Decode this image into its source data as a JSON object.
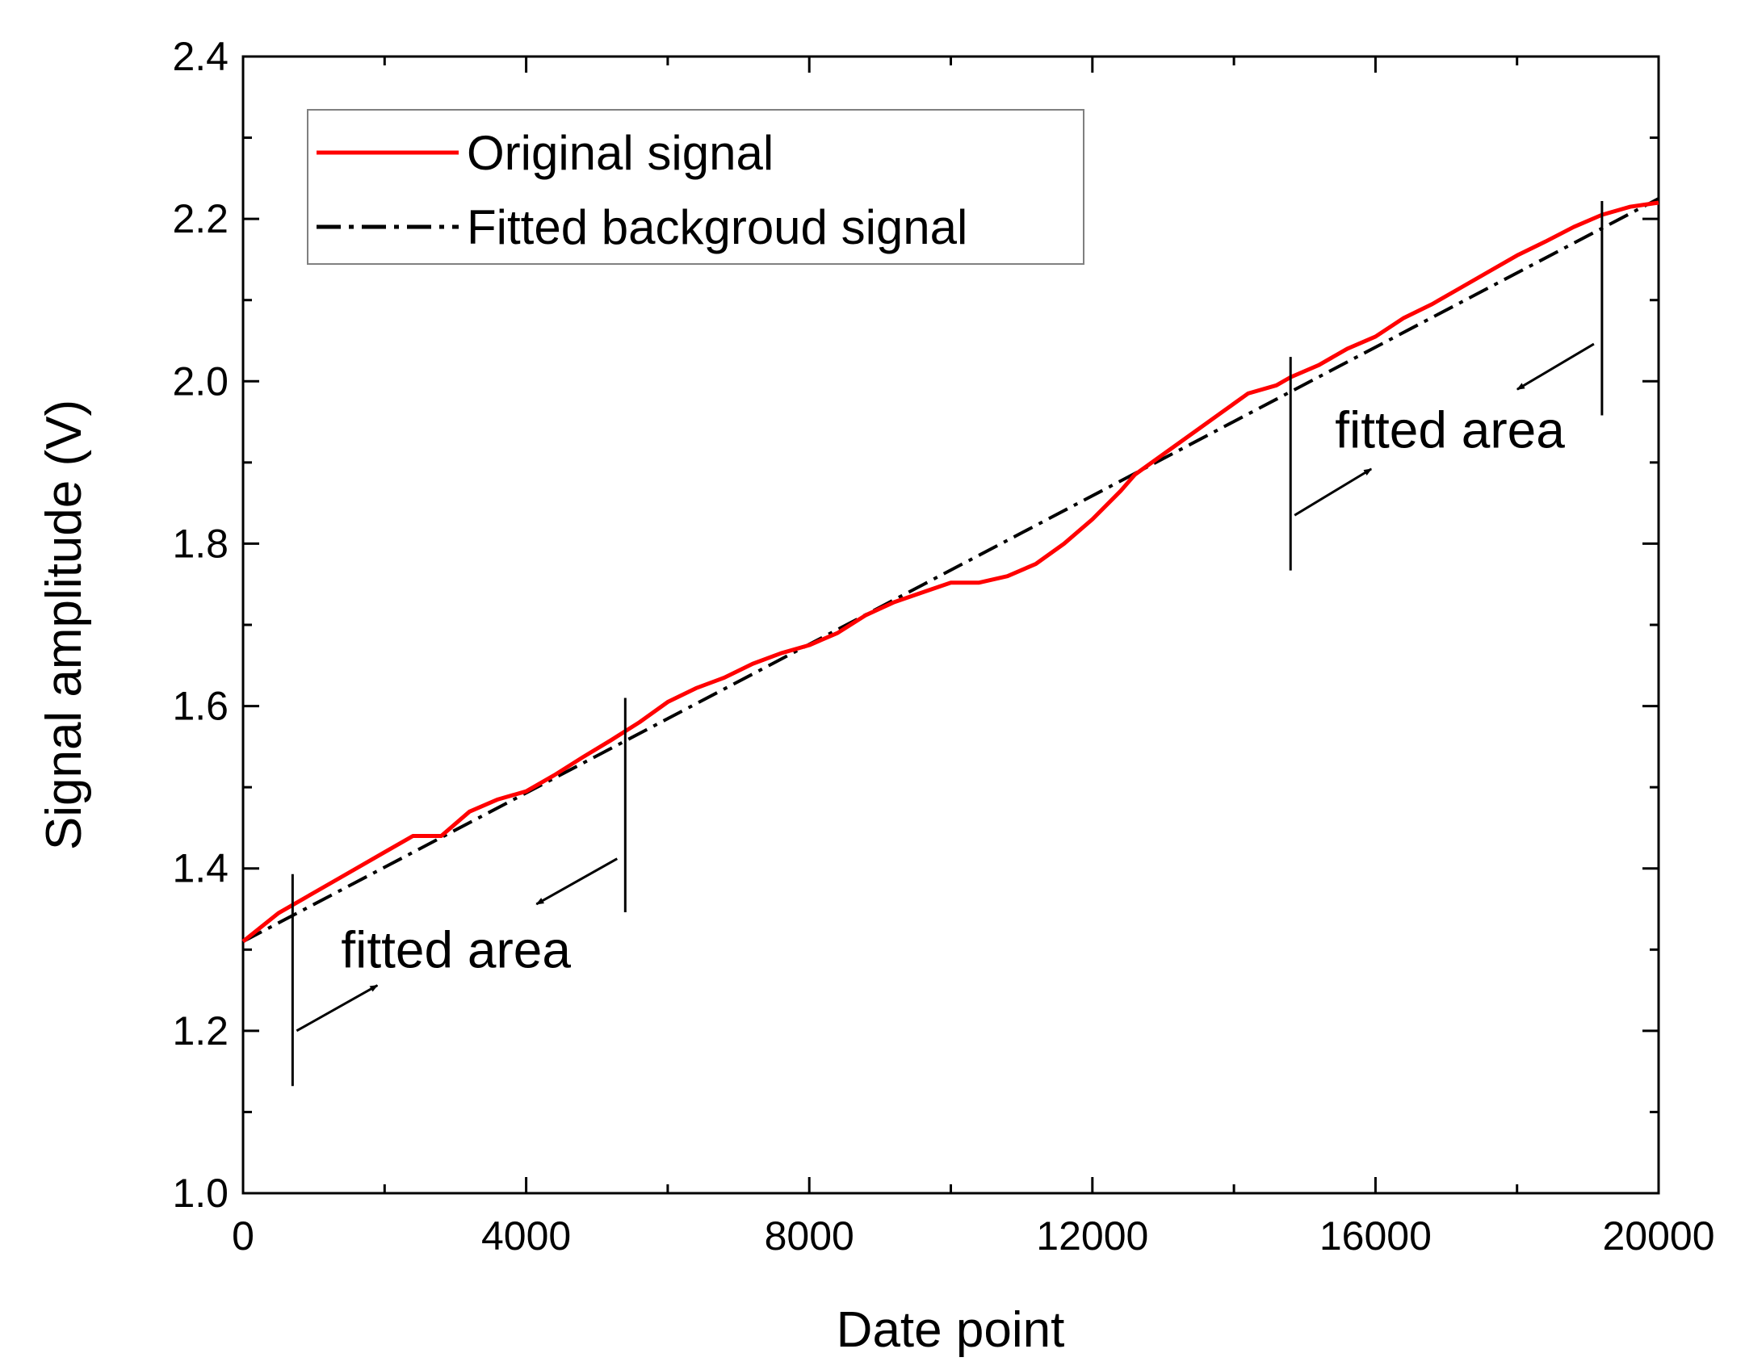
{
  "chart_data": {
    "type": "line",
    "title": "",
    "xlabel": "Date point",
    "ylabel": "Signal amplitude (V)",
    "xlim": [
      0,
      20000
    ],
    "ylim": [
      1.0,
      2.4
    ],
    "x_ticks": [
      0,
      4000,
      8000,
      12000,
      16000,
      20000
    ],
    "y_ticks": [
      1.0,
      1.2,
      1.4,
      1.6,
      1.8,
      2.0,
      2.2,
      2.4
    ],
    "x_tick_labels": [
      "0",
      "4000",
      "8000",
      "12000",
      "16000",
      "20000"
    ],
    "y_tick_labels": [
      "1.0",
      "1.2",
      "1.4",
      "1.6",
      "1.8",
      "2.0",
      "2.2",
      "2.4"
    ],
    "grid": false,
    "legend_position": "top-left",
    "series": [
      {
        "name": "Original signal",
        "color": "#ff0000",
        "style": "solid",
        "x": [
          0,
          500,
          1000,
          1500,
          2000,
          2400,
          2800,
          3200,
          3600,
          4000,
          4400,
          4800,
          5200,
          5600,
          6000,
          6400,
          6800,
          7200,
          7600,
          8000,
          8400,
          8800,
          9200,
          9600,
          10000,
          10400,
          10800,
          11200,
          11600,
          12000,
          12400,
          12600,
          13000,
          13400,
          13800,
          14200,
          14600,
          14800,
          15200,
          15600,
          16000,
          16400,
          16800,
          17200,
          17600,
          18000,
          18400,
          18800,
          19200,
          19600,
          20000
        ],
        "y": [
          1.31,
          1.345,
          1.37,
          1.395,
          1.42,
          1.44,
          1.44,
          1.47,
          1.485,
          1.495,
          1.515,
          1.537,
          1.558,
          1.58,
          1.605,
          1.622,
          1.635,
          1.652,
          1.665,
          1.675,
          1.69,
          1.712,
          1.728,
          1.74,
          1.752,
          1.752,
          1.76,
          1.775,
          1.8,
          1.83,
          1.865,
          1.885,
          1.91,
          1.935,
          1.96,
          1.985,
          1.995,
          2.005,
          2.02,
          2.04,
          2.055,
          2.078,
          2.095,
          2.115,
          2.135,
          2.155,
          2.172,
          2.19,
          2.205,
          2.215,
          2.22
        ]
      },
      {
        "name": "Fitted backgroud signal",
        "color": "#000000",
        "style": "dash-dot",
        "x": [
          0,
          20000
        ],
        "y": [
          1.31,
          2.225
        ]
      }
    ],
    "annotations": [
      {
        "text": "fitted area",
        "region": [
          700,
          5400
        ]
      },
      {
        "text": "fitted area",
        "region": [
          14800,
          19200
        ]
      }
    ]
  }
}
